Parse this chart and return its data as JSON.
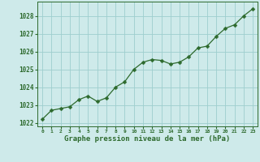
{
  "x": [
    0,
    1,
    2,
    3,
    4,
    5,
    6,
    7,
    8,
    9,
    10,
    11,
    12,
    13,
    14,
    15,
    16,
    17,
    18,
    19,
    20,
    21,
    22,
    23
  ],
  "y": [
    1022.2,
    1022.7,
    1022.8,
    1022.9,
    1023.3,
    1023.5,
    1023.2,
    1023.4,
    1024.0,
    1024.3,
    1025.0,
    1025.4,
    1025.55,
    1025.5,
    1025.3,
    1025.4,
    1025.7,
    1026.2,
    1026.3,
    1026.85,
    1027.3,
    1027.5,
    1028.0,
    1028.4
  ],
  "line_color": "#2d6a2d",
  "marker": "D",
  "marker_size": 2.5,
  "bg_color": "#ceeaea",
  "grid_color": "#9ecece",
  "xlabel": "Graphe pression niveau de la mer (hPa)",
  "xlabel_color": "#2d6a2d",
  "tick_color": "#2d6a2d",
  "ylim": [
    1021.8,
    1028.8
  ],
  "yticks": [
    1022,
    1023,
    1024,
    1025,
    1026,
    1027,
    1028
  ],
  "xlim": [
    -0.5,
    23.5
  ],
  "xticks": [
    0,
    1,
    2,
    3,
    4,
    5,
    6,
    7,
    8,
    9,
    10,
    11,
    12,
    13,
    14,
    15,
    16,
    17,
    18,
    19,
    20,
    21,
    22,
    23
  ]
}
